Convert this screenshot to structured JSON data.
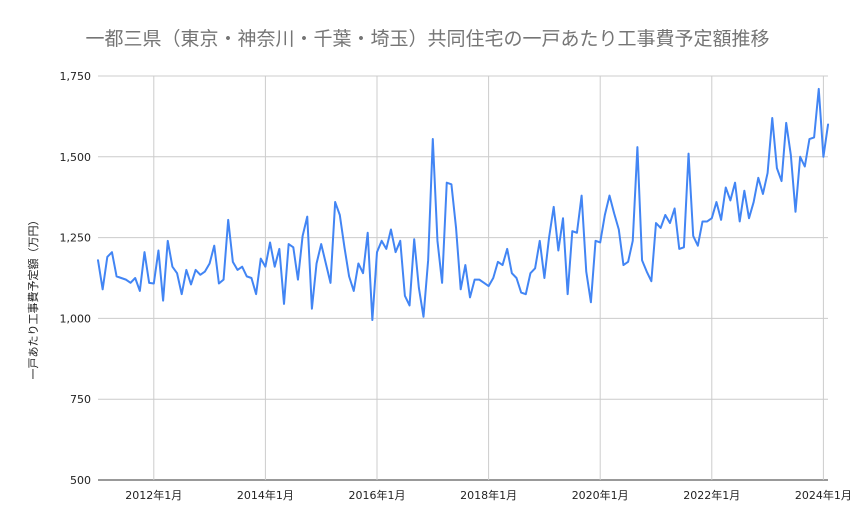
{
  "chart_data": {
    "type": "line",
    "title": "一都三県（東京・神奈川・千葉・埼玉）共同住宅の一戸あたり工事費予定額推移",
    "ylabel": "一戸あたり工事費予定額（万円）",
    "xlabel": "",
    "ylim": [
      500,
      1750
    ],
    "yticks": [
      "500",
      "750",
      "1,000",
      "1,250",
      "1,500",
      "1,750"
    ],
    "xticks": [
      "2012年1月",
      "2014年1月",
      "2016年1月",
      "2018年1月",
      "2020年1月",
      "2022年1月",
      "2024年1月"
    ],
    "x_start": "2011年1月",
    "x_end": "2024年2月",
    "grid": true,
    "legend": "none",
    "series": [
      {
        "color": "#4285f4",
        "values": [
          1180,
          1090,
          1190,
          1205,
          1130,
          1125,
          1120,
          1110,
          1125,
          1085,
          1205,
          1110,
          1108,
          1210,
          1055,
          1240,
          1160,
          1140,
          1075,
          1150,
          1105,
          1150,
          1135,
          1145,
          1170,
          1225,
          1108,
          1120,
          1305,
          1175,
          1150,
          1160,
          1130,
          1125,
          1075,
          1185,
          1160,
          1235,
          1160,
          1215,
          1045,
          1230,
          1220,
          1120,
          1255,
          1315,
          1030,
          1170,
          1230,
          1170,
          1110,
          1360,
          1320,
          1220,
          1130,
          1085,
          1170,
          1140,
          1265,
          995,
          1205,
          1240,
          1215,
          1275,
          1205,
          1240,
          1070,
          1040,
          1245,
          1095,
          1005,
          1180,
          1555,
          1240,
          1110,
          1420,
          1415,
          1280,
          1090,
          1165,
          1065,
          1120,
          1120,
          1110,
          1100,
          1125,
          1175,
          1165,
          1215,
          1140,
          1125,
          1080,
          1075,
          1140,
          1155,
          1240,
          1125,
          1250,
          1345,
          1210,
          1310,
          1075,
          1270,
          1265,
          1380,
          1145,
          1050,
          1240,
          1235,
          1320,
          1380,
          1325,
          1275,
          1165,
          1175,
          1240,
          1530,
          1180,
          1145,
          1115,
          1295,
          1280,
          1320,
          1295,
          1340,
          1215,
          1220,
          1510,
          1255,
          1225,
          1300,
          1300,
          1310,
          1360,
          1305,
          1405,
          1365,
          1420,
          1300,
          1395,
          1310,
          1360,
          1435,
          1385,
          1450,
          1620,
          1465,
          1425,
          1605,
          1505,
          1330,
          1500,
          1470,
          1555,
          1560,
          1710,
          1500,
          1600
        ]
      }
    ]
  }
}
